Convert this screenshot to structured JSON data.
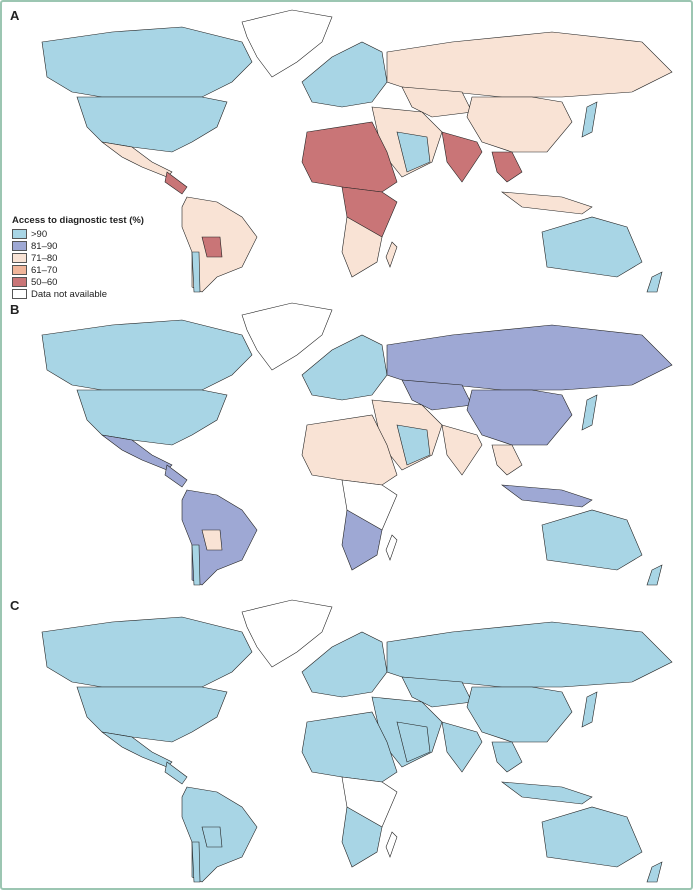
{
  "panels": [
    {
      "label": "A",
      "regions": {
        "greenland": "na",
        "canada": "c1",
        "usa": "c1",
        "mexico": "c3",
        "central_america": "c5",
        "south_america": "c3",
        "bolivia": "c5",
        "chile": "c1",
        "europe": "c1",
        "russia": "c3",
        "central_asia": "c3",
        "china": "c3",
        "middle_east": "c3",
        "saudi": "c1",
        "india": "c5",
        "se_asia": "c5",
        "indonesia": "c3",
        "japan": "c1",
        "australia": "c1",
        "new_zealand": "c1",
        "africa_north": "c5",
        "africa_central": "c5",
        "africa_south": "c3",
        "madagascar": "c3"
      }
    },
    {
      "label": "B",
      "regions": {
        "greenland": "na",
        "canada": "c1",
        "usa": "c1",
        "mexico": "c2",
        "central_america": "c2",
        "south_america": "c2",
        "bolivia": "c3",
        "chile": "c1",
        "europe": "c1",
        "russia": "c2",
        "central_asia": "c2",
        "china": "c2",
        "middle_east": "c3",
        "saudi": "c1",
        "india": "c3",
        "se_asia": "c3",
        "indonesia": "c2",
        "japan": "c1",
        "australia": "c1",
        "new_zealand": "c1",
        "africa_north": "c3",
        "africa_central": "na",
        "africa_south": "c2",
        "madagascar": "na"
      }
    },
    {
      "label": "C",
      "regions": {
        "greenland": "na",
        "canada": "c1",
        "usa": "c1",
        "mexico": "c1",
        "central_america": "c1",
        "south_america": "c1",
        "bolivia": "c1",
        "chile": "c1",
        "europe": "c1",
        "russia": "c1",
        "central_asia": "c1",
        "china": "c1",
        "middle_east": "c1",
        "saudi": "c1",
        "india": "c1",
        "se_asia": "c1",
        "indonesia": "c1",
        "japan": "c1",
        "australia": "c1",
        "new_zealand": "c1",
        "africa_north": "c1",
        "africa_central": "na",
        "africa_south": "c1",
        "madagascar": "na"
      }
    }
  ],
  "legend": {
    "title": "Access to diagnostic test (%)",
    "items": [
      {
        "key": "c1",
        "label": ">90",
        "color": "#a8d5e5"
      },
      {
        "key": "c2",
        "label": "81–90",
        "color": "#9ea8d4"
      },
      {
        "key": "c3",
        "label": "71–80",
        "color": "#f9e3d5"
      },
      {
        "key": "c4",
        "label": "61–70",
        "color": "#f0b59a"
      },
      {
        "key": "c5",
        "label": "50–60",
        "color": "#c97577"
      },
      {
        "key": "na",
        "label": "Data not available",
        "color": "#ffffff"
      }
    ]
  }
}
